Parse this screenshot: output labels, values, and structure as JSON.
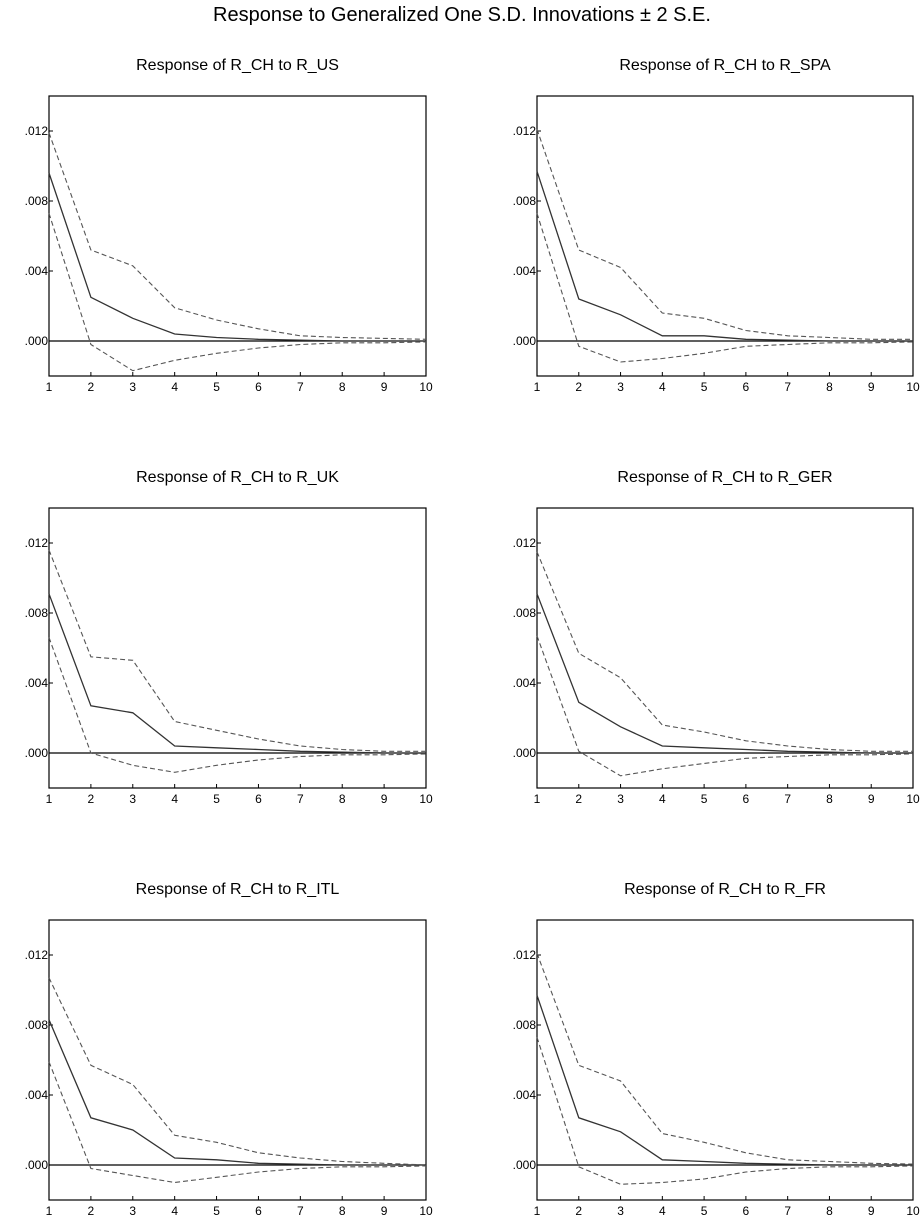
{
  "figure_title": "Response to Generalized One S.D. Innovations ± 2 S.E.",
  "colors": {
    "response": "#333333",
    "bands": "#555555",
    "zero_line": "#000000",
    "frame": "#000000"
  },
  "chart_data": [
    {
      "type": "line",
      "title": "Response of R_CH to R_US",
      "x": [
        1,
        2,
        3,
        4,
        5,
        6,
        7,
        8,
        9,
        10
      ],
      "xticks": [
        "1",
        "2",
        "3",
        "4",
        "5",
        "6",
        "7",
        "8",
        "9",
        "10"
      ],
      "yticks": [
        ".000",
        ".004",
        ".008",
        ".012"
      ],
      "ylim": [
        -0.002,
        0.014
      ],
      "series": [
        {
          "role": "response",
          "values": [
            0.0096,
            0.0025,
            0.0013,
            0.0004,
            0.0002,
            0.0001,
            5e-05,
            0.0,
            0.0,
            0.0
          ]
        },
        {
          "role": "upper",
          "values": [
            0.0119,
            0.0052,
            0.0043,
            0.0019,
            0.0012,
            0.0007,
            0.0003,
            0.0002,
            0.00015,
            0.0001
          ]
        },
        {
          "role": "lower",
          "values": [
            0.0073,
            -0.0002,
            -0.0017,
            -0.0011,
            -0.0007,
            -0.0004,
            -0.0002,
            -0.0001,
            -0.0001,
            -5e-05
          ]
        }
      ]
    },
    {
      "type": "line",
      "title": "Response of R_CH to R_SPA",
      "x": [
        1,
        2,
        3,
        4,
        5,
        6,
        7,
        8,
        9,
        10
      ],
      "xticks": [
        "1",
        "2",
        "3",
        "4",
        "5",
        "6",
        "7",
        "8",
        "9",
        "10"
      ],
      "yticks": [
        ".000",
        ".004",
        ".008",
        ".012"
      ],
      "ylim": [
        -0.002,
        0.014
      ],
      "series": [
        {
          "role": "response",
          "values": [
            0.0097,
            0.0024,
            0.0015,
            0.0003,
            0.0003,
            0.0001,
            5e-05,
            0.0,
            0.0,
            0.0
          ]
        },
        {
          "role": "upper",
          "values": [
            0.0121,
            0.0052,
            0.0042,
            0.0016,
            0.0013,
            0.0006,
            0.0003,
            0.0002,
            0.0001,
            0.0001
          ]
        },
        {
          "role": "lower",
          "values": [
            0.0073,
            -0.0003,
            -0.0012,
            -0.001,
            -0.0007,
            -0.0003,
            -0.0002,
            -0.0001,
            -0.0001,
            -5e-05
          ]
        }
      ]
    },
    {
      "type": "line",
      "title": "Response of R_CH to R_UK",
      "x": [
        1,
        2,
        3,
        4,
        5,
        6,
        7,
        8,
        9,
        10
      ],
      "xticks": [
        "1",
        "2",
        "3",
        "4",
        "5",
        "6",
        "7",
        "8",
        "9",
        "10"
      ],
      "yticks": [
        ".000",
        ".004",
        ".008",
        ".012"
      ],
      "ylim": [
        -0.002,
        0.014
      ],
      "series": [
        {
          "role": "response",
          "values": [
            0.0091,
            0.0027,
            0.0023,
            0.0004,
            0.0003,
            0.0002,
            0.0001,
            5e-05,
            0.0,
            0.0
          ]
        },
        {
          "role": "upper",
          "values": [
            0.0116,
            0.0055,
            0.0053,
            0.0018,
            0.0013,
            0.0008,
            0.0004,
            0.0002,
            0.0001,
            0.0001
          ]
        },
        {
          "role": "lower",
          "values": [
            0.0066,
            0.0,
            -0.0007,
            -0.0011,
            -0.0007,
            -0.0004,
            -0.0002,
            -0.0001,
            -0.0001,
            -5e-05
          ]
        }
      ]
    },
    {
      "type": "line",
      "title": "Response of R_CH to R_GER",
      "x": [
        1,
        2,
        3,
        4,
        5,
        6,
        7,
        8,
        9,
        10
      ],
      "xticks": [
        "1",
        "2",
        "3",
        "4",
        "5",
        "6",
        "7",
        "8",
        "9",
        "10"
      ],
      "yticks": [
        ".000",
        ".004",
        ".008",
        ".012"
      ],
      "ylim": [
        -0.002,
        0.014
      ],
      "series": [
        {
          "role": "response",
          "values": [
            0.0091,
            0.0029,
            0.0015,
            0.0004,
            0.0003,
            0.0002,
            0.0001,
            5e-05,
            0.0,
            0.0
          ]
        },
        {
          "role": "upper",
          "values": [
            0.0115,
            0.0057,
            0.0043,
            0.0016,
            0.0012,
            0.0007,
            0.0004,
            0.0002,
            0.0001,
            0.0001
          ]
        },
        {
          "role": "lower",
          "values": [
            0.0067,
            0.0001,
            -0.0013,
            -0.0009,
            -0.0006,
            -0.0003,
            -0.0002,
            -0.0001,
            -0.0001,
            -5e-05
          ]
        }
      ]
    },
    {
      "type": "line",
      "title": "Response of R_CH to R_ITL",
      "x": [
        1,
        2,
        3,
        4,
        5,
        6,
        7,
        8,
        9,
        10
      ],
      "xticks": [
        "1",
        "2",
        "3",
        "4",
        "5",
        "6",
        "7",
        "8",
        "9",
        "10"
      ],
      "yticks": [
        ".000",
        ".004",
        ".008",
        ".012"
      ],
      "ylim": [
        -0.002,
        0.014
      ],
      "series": [
        {
          "role": "response",
          "values": [
            0.0083,
            0.0027,
            0.002,
            0.0004,
            0.0003,
            0.0001,
            5e-05,
            0.0,
            0.0,
            0.0
          ]
        },
        {
          "role": "upper",
          "values": [
            0.0107,
            0.0057,
            0.0046,
            0.0017,
            0.0013,
            0.0007,
            0.0004,
            0.0002,
            0.0001,
            0.0
          ]
        },
        {
          "role": "lower",
          "values": [
            0.0059,
            -0.0002,
            -0.0006,
            -0.001,
            -0.0007,
            -0.0004,
            -0.0002,
            -0.0001,
            -0.0001,
            -5e-05
          ]
        }
      ]
    },
    {
      "type": "line",
      "title": "Response of R_CH to R_FR",
      "x": [
        1,
        2,
        3,
        4,
        5,
        6,
        7,
        8,
        9,
        10
      ],
      "xticks": [
        "1",
        "2",
        "3",
        "4",
        "5",
        "6",
        "7",
        "8",
        "9",
        "10"
      ],
      "yticks": [
        ".000",
        ".004",
        ".008",
        ".012"
      ],
      "ylim": [
        -0.002,
        0.014
      ],
      "series": [
        {
          "role": "response",
          "values": [
            0.0097,
            0.0027,
            0.0019,
            0.0003,
            0.0002,
            0.0001,
            5e-05,
            0.0,
            0.0,
            0.0
          ]
        },
        {
          "role": "upper",
          "values": [
            0.0121,
            0.0057,
            0.0048,
            0.0018,
            0.0013,
            0.0007,
            0.0003,
            0.0002,
            0.0001,
            5e-05
          ]
        },
        {
          "role": "lower",
          "values": [
            0.0073,
            -0.0001,
            -0.0011,
            -0.001,
            -0.0008,
            -0.0004,
            -0.0002,
            -0.0001,
            -0.0001,
            -5e-05
          ]
        }
      ]
    }
  ]
}
